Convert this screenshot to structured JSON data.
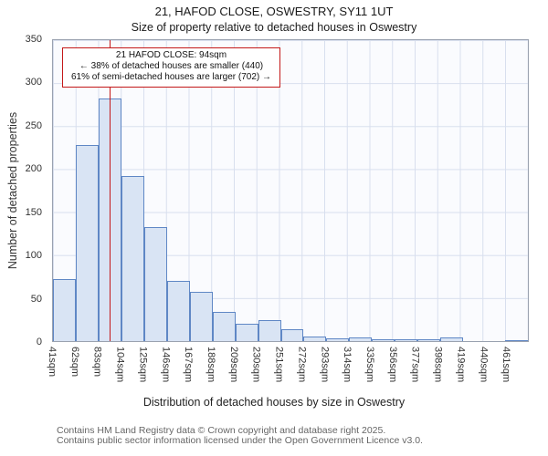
{
  "chart_data": {
    "type": "bar",
    "title": "21, HAFOD CLOSE, OSWESTRY, SY11 1UT",
    "subtitle": "Size of property relative to detached houses in Oswestry",
    "xlabel": "Distribution of detached houses by size in Oswestry",
    "ylabel": "Number of detached properties",
    "categories": [
      "41sqm",
      "62sqm",
      "83sqm",
      "104sqm",
      "125sqm",
      "146sqm",
      "167sqm",
      "188sqm",
      "209sqm",
      "230sqm",
      "251sqm",
      "272sqm",
      "293sqm",
      "314sqm",
      "335sqm",
      "356sqm",
      "377sqm",
      "398sqm",
      "419sqm",
      "440sqm",
      "461sqm"
    ],
    "values": [
      72,
      228,
      282,
      192,
      133,
      70,
      57,
      34,
      20,
      24,
      14,
      5,
      3,
      4,
      2,
      2,
      2,
      4,
      0,
      0,
      1
    ],
    "bin_width_sqm": 21,
    "ylim": [
      0,
      350
    ],
    "yticks": [
      0,
      50,
      100,
      150,
      200,
      250,
      300,
      350
    ],
    "grid": true,
    "marker": {
      "value_sqm": 94,
      "label": "94sqm"
    },
    "annotation": {
      "lines": [
        "21 HAFOD CLOSE: 94sqm",
        "← 38% of detached houses are smaller (440)",
        "61% of semi-detached houses are larger (702) →"
      ]
    },
    "colors": {
      "bar_fill": "#d9e4f4",
      "bar_border": "#5f87c5",
      "marker_line": "#c41818",
      "annotation_border": "#c41818",
      "gridline": "#d8dfee"
    }
  },
  "page": {
    "footer_line1": "Contains HM Land Registry data © Crown copyright and database right 2025.",
    "footer_line2": "Contains public sector information licensed under the Open Government Licence v3.0."
  }
}
